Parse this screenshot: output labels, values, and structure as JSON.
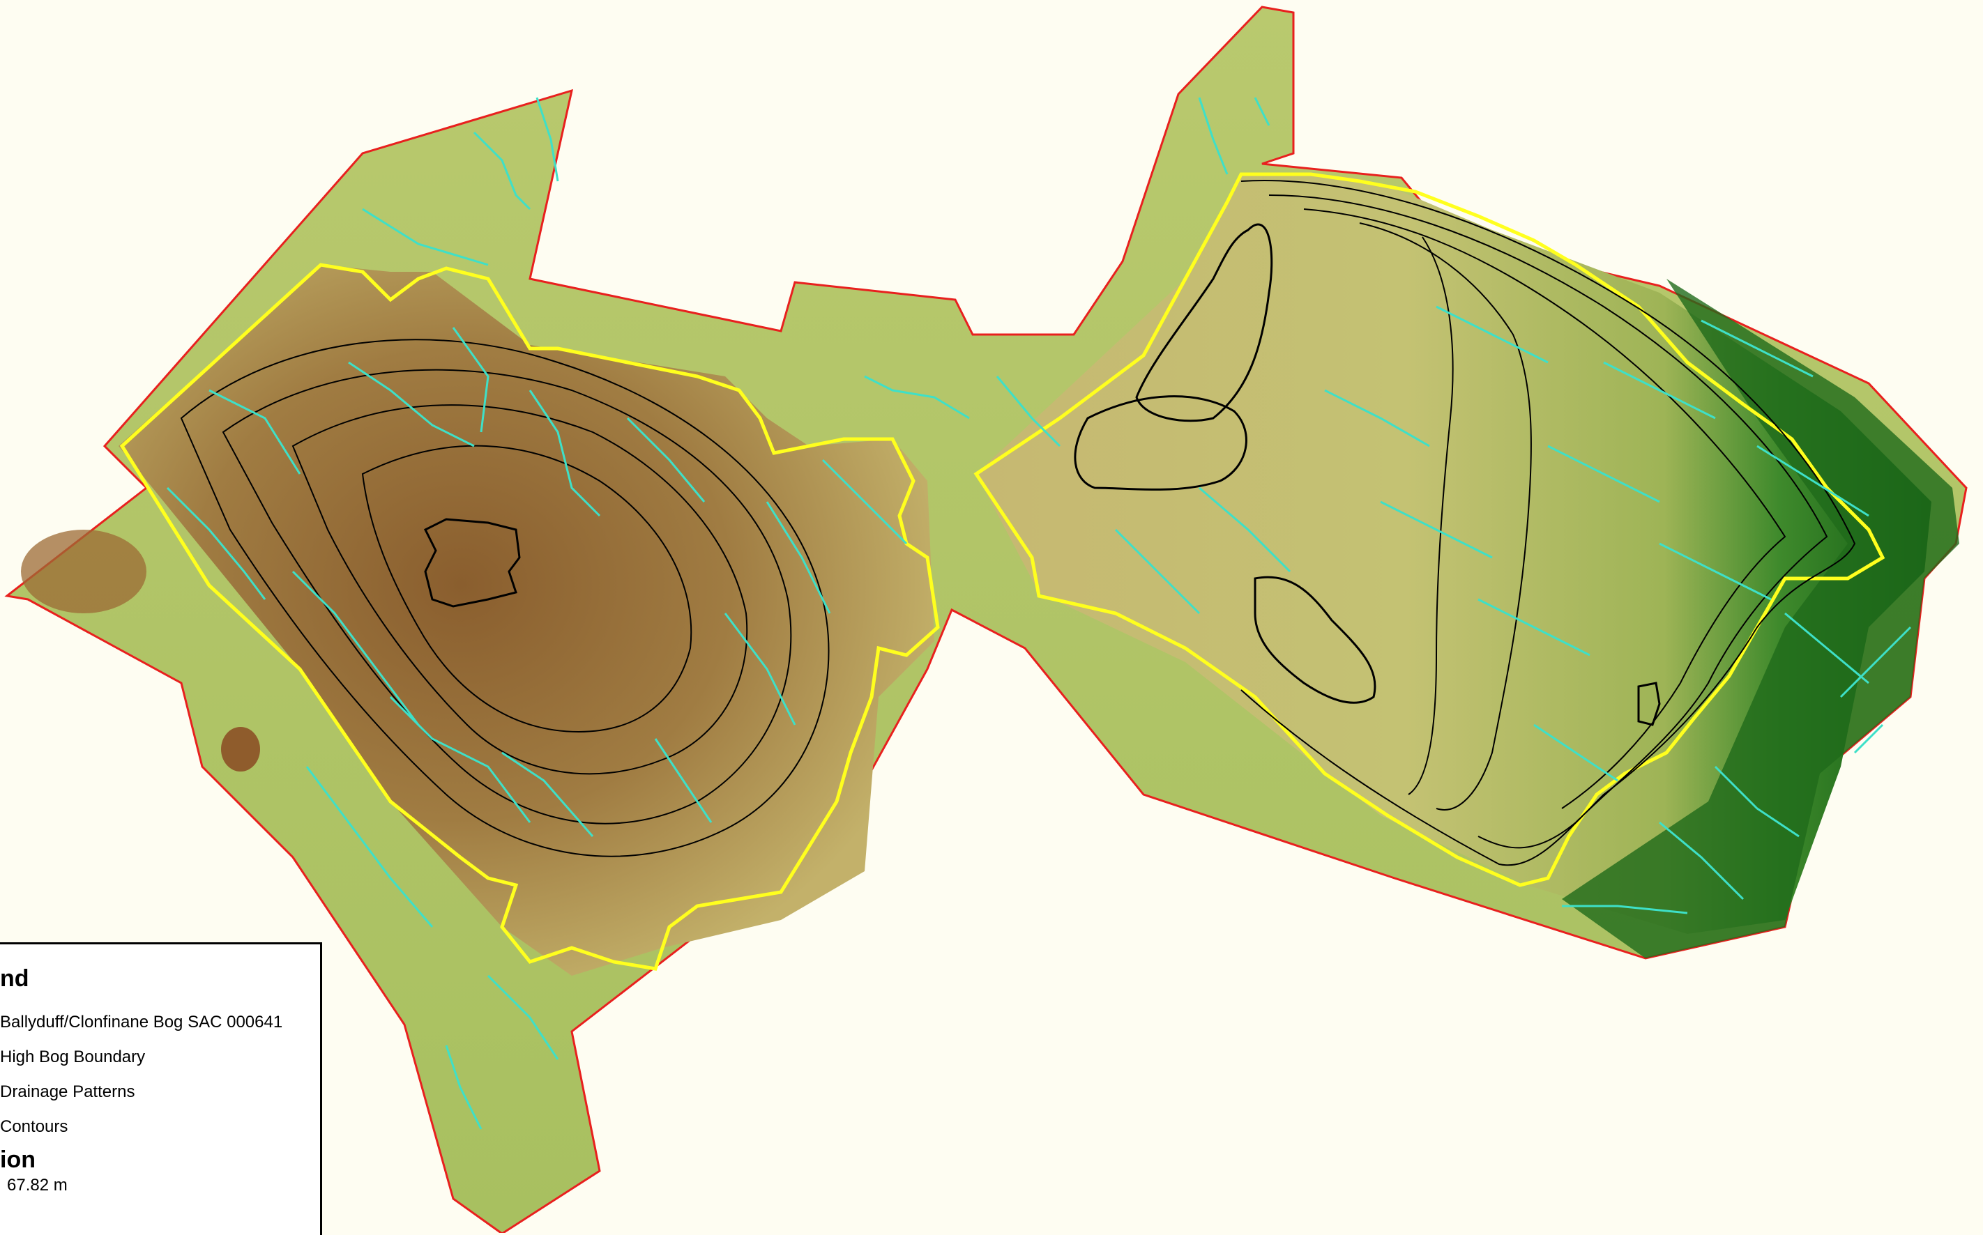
{
  "map": {
    "colors": {
      "site_boundary": "#e8201e",
      "high_bog_boundary": "#ffff1e",
      "drainage": "#3ee0c8",
      "contours": "#000000",
      "elevation_high": "#7a4a1e",
      "elevation_mid": "#c4b060",
      "elevation_low": "#0b5a10",
      "background": "#fefdf2"
    },
    "legend": {
      "title": "nd",
      "items": [
        {
          "label": "Ballyduff/Clonfinane Bog SAC 000641",
          "symbol": "site_boundary"
        },
        {
          "label": "High Bog Boundary",
          "symbol": "high_bog_boundary"
        },
        {
          "label": "Drainage Patterns",
          "symbol": "drainage"
        },
        {
          "label": "Contours",
          "symbol": "contours"
        }
      ],
      "elevation_title": "ion",
      "elevation_value": "67.82 m"
    }
  }
}
